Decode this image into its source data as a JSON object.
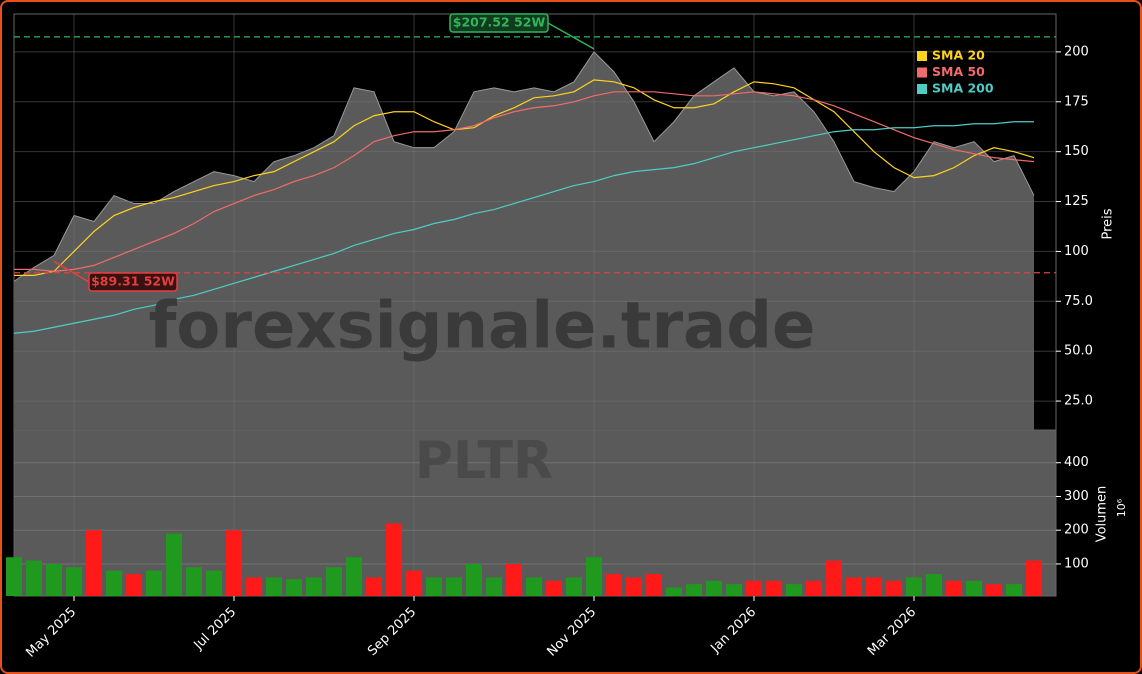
{
  "chart_data": {
    "type": "stock",
    "ticker": "PLTR",
    "watermark": "forexsignale.trade",
    "y_label": "Preis",
    "y2_label": "Volumen",
    "y2_unit": "10⁶",
    "categories": [
      null,
      null,
      null,
      "May 2025",
      null,
      null,
      null,
      null,
      null,
      null,
      null,
      "Jul 2025",
      null,
      null,
      null,
      null,
      null,
      null,
      null,
      null,
      "Sep 2025",
      null,
      null,
      null,
      null,
      null,
      null,
      null,
      null,
      "Nov 2025",
      null,
      null,
      null,
      null,
      null,
      null,
      null,
      "Jan 2026",
      null,
      null,
      null,
      null,
      null,
      null,
      null,
      "Mar 2026",
      null,
      null,
      null,
      null,
      null,
      null
    ],
    "price": {
      "name": "PLTR",
      "color": "#5a5a5a",
      "values": [
        85,
        92,
        98,
        118,
        115,
        128,
        124,
        124,
        130,
        135,
        140,
        138,
        135,
        145,
        148,
        152,
        158,
        182,
        180,
        155,
        152,
        152,
        160,
        180,
        182,
        180,
        182,
        180,
        185,
        200,
        190,
        175,
        155,
        165,
        178,
        185,
        192,
        180,
        178,
        180,
        170,
        155,
        135,
        132,
        130,
        140,
        155,
        152,
        155,
        145,
        148,
        128
      ]
    },
    "series": [
      {
        "name": "SMA 20",
        "color": "#ffd21f",
        "values": [
          88,
          88,
          90,
          100,
          110,
          118,
          122,
          125,
          127,
          130,
          133,
          135,
          138,
          140,
          145,
          150,
          155,
          163,
          168,
          170,
          170,
          165,
          161,
          162,
          168,
          172,
          177,
          178,
          180,
          186,
          185,
          182,
          176,
          172,
          172,
          174,
          180,
          185,
          184,
          182,
          176,
          170,
          160,
          150,
          142,
          137,
          138,
          142,
          148,
          152,
          150,
          147
        ]
      },
      {
        "name": "SMA 50",
        "color": "#f26b6b",
        "values": [
          91,
          91,
          90,
          91,
          93,
          97,
          101,
          105,
          109,
          114,
          120,
          124,
          128,
          131,
          135,
          138,
          142,
          148,
          155,
          158,
          160,
          160,
          161,
          163,
          167,
          170,
          172,
          173,
          175,
          178,
          180,
          180,
          180,
          179,
          178,
          178,
          179,
          180,
          179,
          178,
          176,
          173,
          169,
          165,
          161,
          157,
          154,
          151,
          149,
          147,
          146,
          145
        ]
      },
      {
        "name": "SMA 200",
        "color": "#4ecdc4",
        "values": [
          59,
          60,
          62,
          64,
          66,
          68,
          71,
          73,
          76,
          78,
          81,
          84,
          87,
          90,
          93,
          96,
          99,
          103,
          106,
          109,
          111,
          114,
          116,
          119,
          121,
          124,
          127,
          130,
          133,
          135,
          138,
          140,
          141,
          142,
          144,
          147,
          150,
          152,
          154,
          156,
          158,
          160,
          161,
          161,
          162,
          162,
          163,
          163,
          164,
          164,
          165,
          165
        ]
      }
    ],
    "volume": {
      "name": "Volumen",
      "up_color": "#1f9a1f",
      "down_color": "#ff1a1a",
      "axis": "y2",
      "values": [
        120,
        110,
        100,
        90,
        200,
        80,
        70,
        80,
        190,
        90,
        80,
        200,
        60,
        60,
        55,
        60,
        90,
        120,
        60,
        220,
        80,
        60,
        60,
        100,
        60,
        100,
        60,
        50,
        60,
        120,
        70,
        60,
        70,
        30,
        40,
        50,
        40,
        50,
        50,
        40,
        50,
        110,
        60,
        60,
        50,
        60,
        70,
        50,
        50,
        40,
        40,
        110
      ]
    },
    "high": {
      "label": "$207.52 52W",
      "value": 207.52,
      "color": "#2fb75a"
    },
    "low": {
      "label": "$89.31 52W",
      "value": 89.31,
      "color": "#e04040"
    },
    "ylim": [
      10.5,
      219
    ],
    "yticks": [
      {
        "value": 25,
        "label": "25.0"
      },
      {
        "value": 50,
        "label": "50.0"
      },
      {
        "value": 75,
        "label": "75.0"
      },
      100,
      125,
      150,
      175,
      200
    ],
    "y2lim": [
      5,
      497
    ],
    "y2ticks": [
      100,
      200,
      300,
      400
    ],
    "grid": true
  }
}
